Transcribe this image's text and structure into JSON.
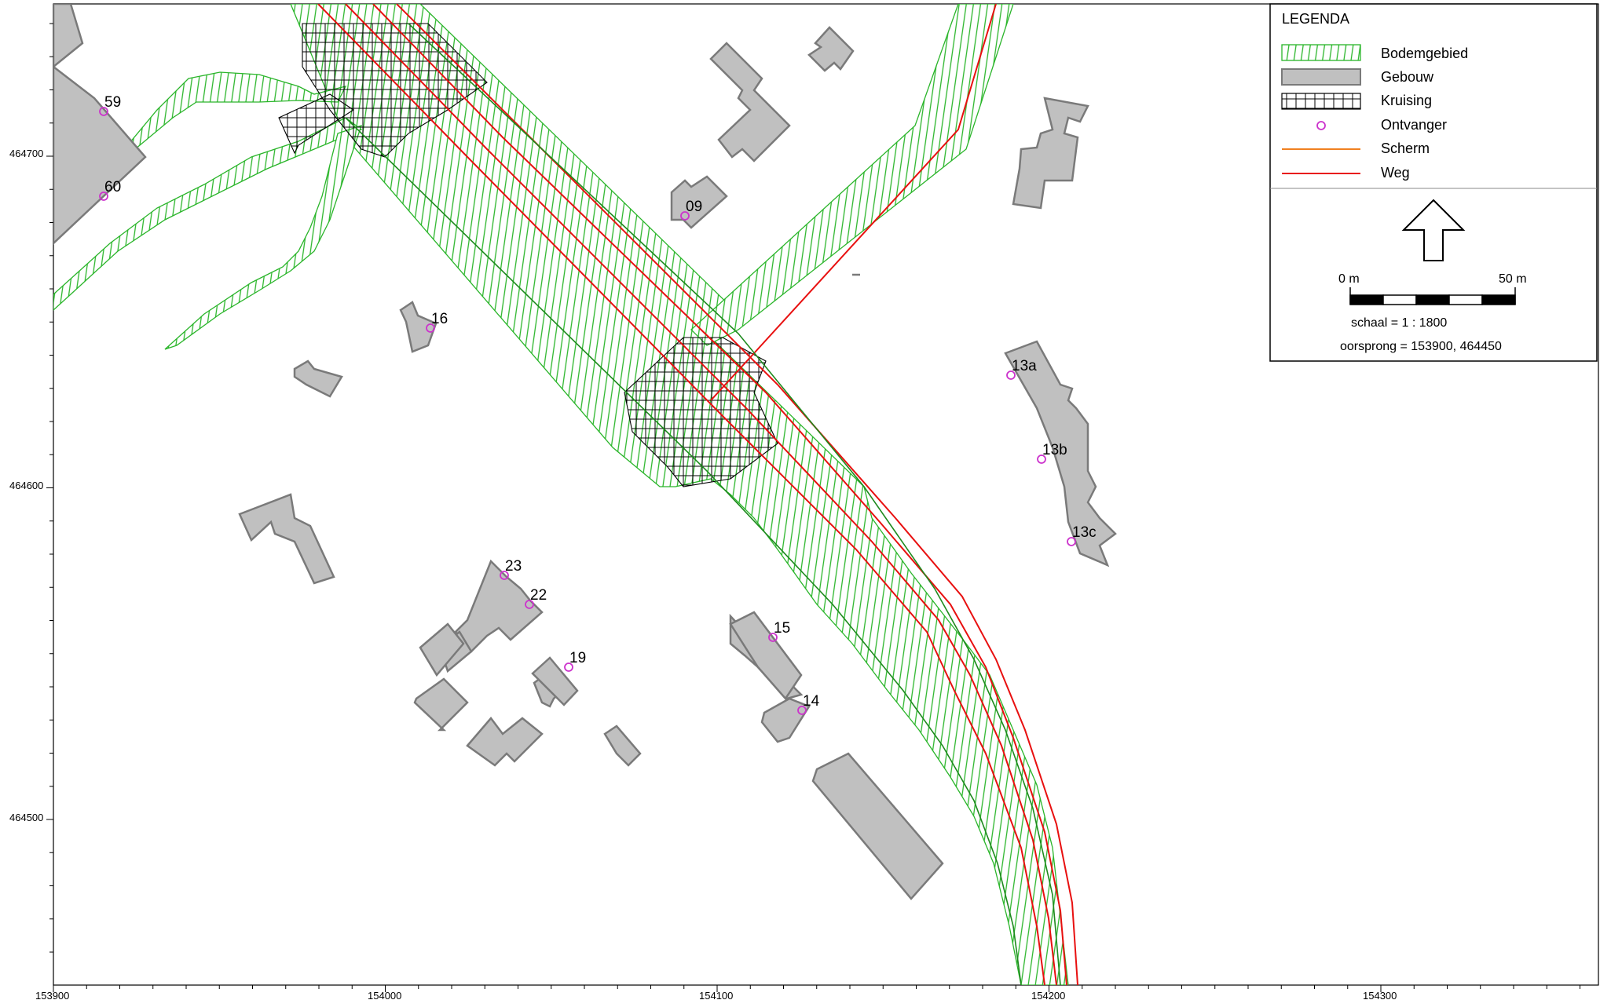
{
  "map": {
    "x_ticks": [
      "153900",
      "154000",
      "154100",
      "154200",
      "154300"
    ],
    "y_ticks": [
      "464700",
      "464600",
      "464500"
    ]
  },
  "legend": {
    "title": "LEGENDA",
    "items": [
      {
        "label": "Bodemgebied",
        "symbol": "green-hatch",
        "color": "#2ab52a"
      },
      {
        "label": "Gebouw",
        "symbol": "grey-fill",
        "color": "#c0c0c0"
      },
      {
        "label": "Kruising",
        "symbol": "black-crosshatch",
        "color": "#000000"
      },
      {
        "label": "Ontvanger",
        "symbol": "receiver-circle",
        "color": "#cc33cc"
      },
      {
        "label": "Scherm",
        "symbol": "line",
        "color": "#f08020"
      },
      {
        "label": "Weg",
        "symbol": "line",
        "color": "#e81010"
      }
    ],
    "north_icon": "north-arrow-icon",
    "scale_start": "0 m",
    "scale_end": "50 m",
    "scale_text": "schaal = 1 : 1800",
    "origin_text": "oorsprong = 153900, 464450"
  },
  "receivers": [
    {
      "label": "59"
    },
    {
      "label": "60"
    },
    {
      "label": "09"
    },
    {
      "label": "16"
    },
    {
      "label": "13a"
    },
    {
      "label": "13b"
    },
    {
      "label": "13c"
    },
    {
      "label": "23"
    },
    {
      "label": "22"
    },
    {
      "label": "19"
    },
    {
      "label": "15"
    },
    {
      "label": "14"
    }
  ]
}
